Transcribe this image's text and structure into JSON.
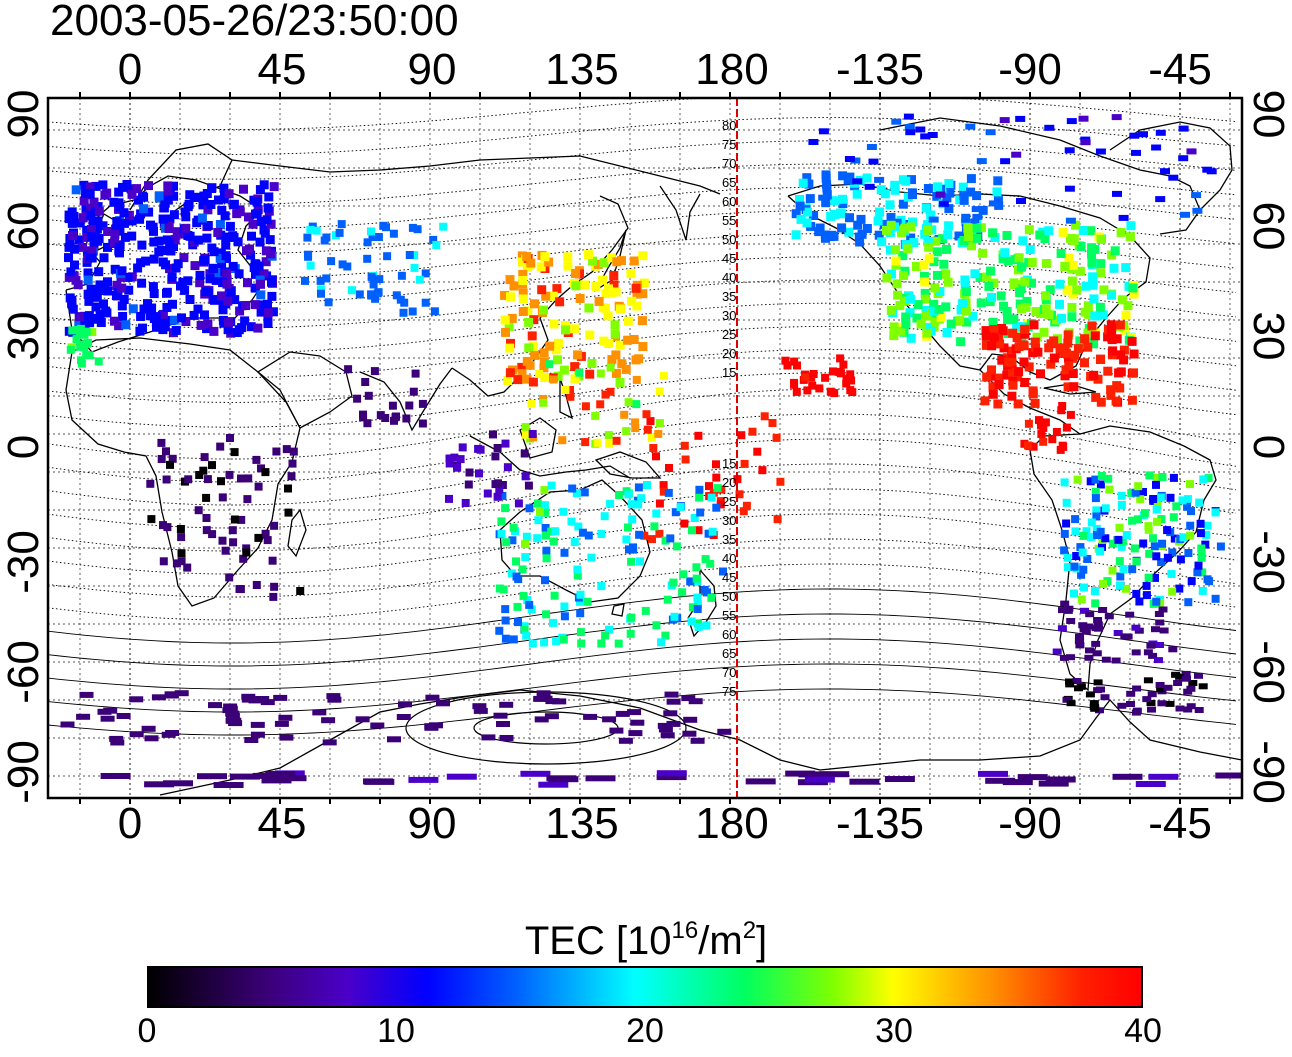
{
  "timestamp": "2003-05-26/23:50:00",
  "map": {
    "lon_ticks": [
      "0",
      "45",
      "90",
      "135",
      "180",
      "-135",
      "-90",
      "-45"
    ],
    "lat_ticks_left": [
      "90",
      "60",
      "30",
      "0",
      "-30",
      "-60",
      "-90"
    ],
    "lat_ticks_right": [
      "90",
      "60",
      "30",
      "0",
      "-30",
      "-60",
      "-90"
    ],
    "contour_labels_north": [
      "80",
      "75",
      "70",
      "65",
      "60",
      "55",
      "50",
      "45",
      "40",
      "35",
      "30",
      "25",
      "20",
      "15"
    ],
    "contour_labels_south": [
      "15",
      "20",
      "25",
      "30",
      "35",
      "40",
      "45",
      "50",
      "55",
      "60",
      "65",
      "70",
      "75"
    ],
    "meridian_line_color": "#e00000",
    "meridian_line_lon": 184
  },
  "colorbar": {
    "title_prefix": "TEC  [10",
    "title_sup1": "16",
    "title_mid": "/m",
    "title_sup2": "2",
    "title_suffix": "]",
    "ticks": [
      "0",
      "10",
      "20",
      "30",
      "40"
    ],
    "min": 0,
    "max": 40
  }
}
